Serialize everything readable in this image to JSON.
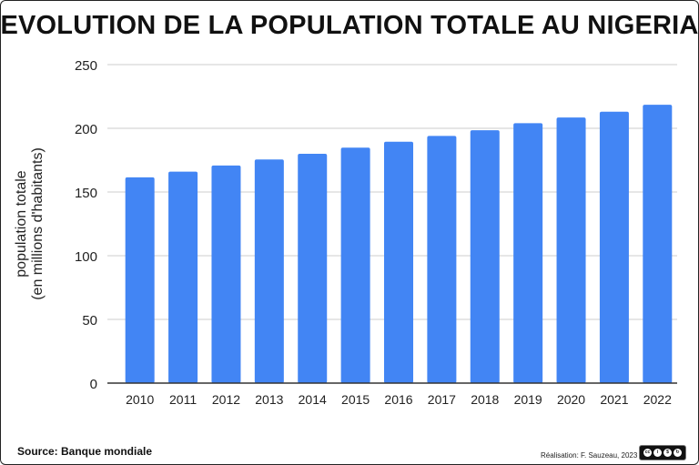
{
  "chart_data": {
    "type": "bar",
    "title": "EVOLUTION DE LA POPULATION TOTALE AU NIGERIA",
    "ylabel_line1": "population totale",
    "ylabel_line2": "(en millions d'habitants)",
    "xlabel": "",
    "categories": [
      "2010",
      "2011",
      "2012",
      "2013",
      "2014",
      "2015",
      "2016",
      "2017",
      "2018",
      "2019",
      "2020",
      "2021",
      "2022"
    ],
    "values": [
      161.5,
      166.0,
      170.8,
      175.5,
      180.0,
      184.8,
      189.5,
      194.0,
      198.5,
      204.0,
      208.5,
      213.0,
      218.5
    ],
    "ylim": [
      0,
      250
    ],
    "yticks": [
      0,
      50,
      100,
      150,
      200,
      250
    ],
    "grid": true,
    "bar_color": "#4285f4",
    "grid_color": "#cccccc"
  },
  "footer": {
    "source": "Source: Banque mondiale",
    "credit": "Réalisation: F. Sauzeau, 2023",
    "license_icon": "creative-commons-by-nc-sa-icon"
  }
}
